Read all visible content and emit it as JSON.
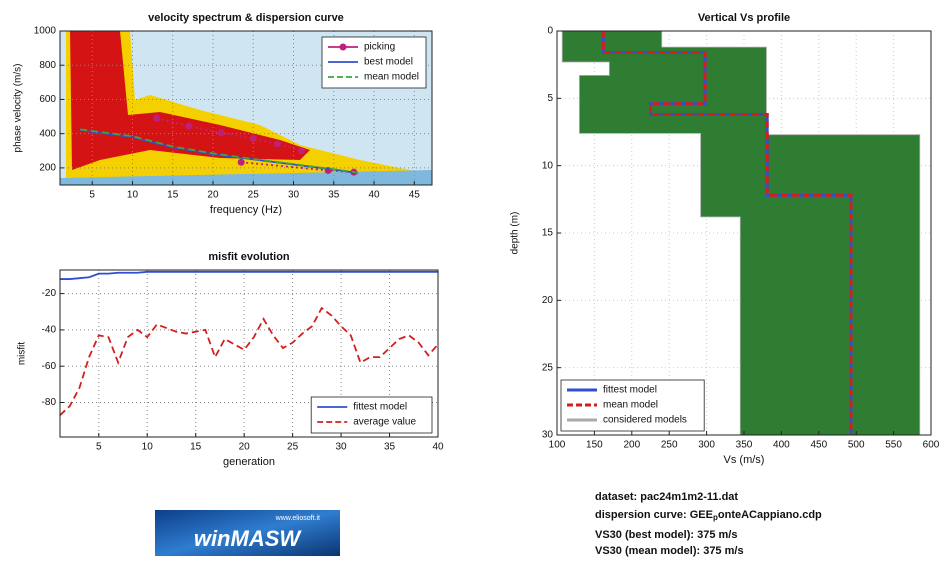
{
  "chart_data": [
    {
      "type": "line",
      "title": "velocity spectrum & dispersion curve",
      "xlabel": "frequency (Hz)",
      "ylabel": "phase velocity (m/s)",
      "xlim": [
        1,
        47.2
      ],
      "xticks": [
        5,
        10,
        15,
        20,
        25,
        30,
        35,
        40,
        45
      ],
      "ylim": [
        100,
        1000
      ],
      "yticks": [
        200,
        400,
        600,
        800,
        1000
      ],
      "grid": true,
      "legend": "upper right",
      "series": [
        {
          "name": "picking",
          "color": "#c0207a",
          "marker": "circle",
          "linestyle": "dotted",
          "x": [
            13,
            17,
            21,
            25,
            28,
            31,
            null,
            23.5,
            34.3,
            37.5
          ],
          "values": [
            490,
            445,
            405,
            370,
            340,
            300,
            null,
            233,
            185,
            175
          ]
        },
        {
          "name": "best model",
          "color": "#2f4fd0",
          "linestyle": "solid",
          "x": [
            3.5,
            10,
            15,
            20,
            25,
            30,
            35,
            38
          ],
          "values": [
            420,
            380,
            320,
            280,
            250,
            220,
            190,
            170
          ]
        },
        {
          "name": "mean model",
          "color": "#3aa83a",
          "linestyle": "dashed",
          "x": [
            3.5,
            10,
            15,
            20,
            25,
            30,
            35,
            38
          ],
          "values": [
            425,
            385,
            325,
            285,
            252,
            222,
            192,
            172
          ]
        }
      ]
    },
    {
      "type": "line",
      "title": "misfit evolution",
      "xlabel": "generation",
      "ylabel": "misfit",
      "xlim": [
        1,
        40
      ],
      "xticks": [
        5,
        10,
        15,
        20,
        25,
        30,
        35,
        40
      ],
      "ylim": [
        -99,
        -7
      ],
      "yticks": [
        -20,
        -40,
        -60,
        -80
      ],
      "grid": true,
      "legend": "lower right",
      "x": [
        1,
        2,
        3,
        4,
        5,
        6,
        7,
        8,
        9,
        10,
        11,
        12,
        13,
        14,
        15,
        16,
        17,
        18,
        19,
        20,
        21,
        22,
        23,
        24,
        25,
        26,
        27,
        28,
        29,
        30,
        31,
        32,
        33,
        34,
        35,
        36,
        37,
        38,
        39,
        40
      ],
      "series": [
        {
          "name": "fittest model",
          "color": "#2f4fd0",
          "linestyle": "solid",
          "values": [
            -12,
            -12,
            -11.5,
            -11,
            -9,
            -9,
            -8.5,
            -8.5,
            -8.5,
            -8,
            -8,
            -8,
            -8,
            -8,
            -8,
            -8,
            -8,
            -8,
            -8,
            -8,
            -8,
            -8,
            -8,
            -8,
            -8,
            -8,
            -8,
            -8,
            -8,
            -8,
            -8,
            -8,
            -8,
            -8,
            -8,
            -8,
            -8,
            -8,
            -8,
            -8
          ]
        },
        {
          "name": "average value",
          "color": "#d22020",
          "linestyle": "dashed",
          "values": [
            -87,
            -82,
            -72,
            -55,
            -43,
            -44,
            -58,
            -44,
            -40,
            -44,
            -37,
            -39,
            -41,
            -42,
            -41,
            -40,
            -55,
            -45,
            -48,
            -51,
            -44,
            -34,
            -43,
            -50,
            -47,
            -42,
            -38,
            -28,
            -32,
            -38,
            -43,
            -58,
            -55,
            -55,
            -50,
            -45,
            -43,
            -47,
            -54,
            -48
          ]
        }
      ]
    },
    {
      "type": "line",
      "title": "Vertical Vs profile",
      "xlabel": "Vs (m/s)",
      "ylabel": "depth (m)",
      "xlim": [
        100,
        600
      ],
      "xticks": [
        100,
        150,
        200,
        250,
        300,
        350,
        400,
        450,
        500,
        550,
        600
      ],
      "ylim": [
        0,
        30
      ],
      "yticks": [
        0,
        5,
        10,
        15,
        20,
        25,
        30
      ],
      "invert_y": true,
      "grid": true,
      "legend": "lower left",
      "series": [
        {
          "name": "fittest model",
          "color": "#2f4fd0",
          "linestyle": "solid",
          "x": [
            162,
            162,
            298,
            298,
            225,
            225,
            381,
            381,
            493,
            493
          ],
          "values": [
            0,
            1.6,
            1.6,
            5.4,
            5.4,
            6.2,
            6.2,
            12.2,
            12.2,
            30
          ]
        },
        {
          "name": "mean model",
          "color": "#d22020",
          "linestyle": "dashed",
          "x": [
            162,
            162,
            298,
            298,
            225,
            225,
            381,
            381,
            493,
            493
          ],
          "values": [
            0,
            1.6,
            1.6,
            5.4,
            5.4,
            6.2,
            6.2,
            12.2,
            12.2,
            30
          ]
        },
        {
          "name": "considered models",
          "color": "#aaaaaa",
          "fill": "#2f7d32",
          "linestyle": "area",
          "x": [
            107,
            240,
            240,
            380,
            380,
            585,
            585,
            345,
            345,
            292,
            292,
            130,
            130,
            170,
            170,
            107
          ],
          "values": [
            0,
            0,
            1.2,
            1.2,
            7.7,
            7.7,
            30,
            30,
            13.8,
            13.8,
            7.6,
            7.6,
            3.3,
            3.3,
            2.3,
            2.3
          ]
        }
      ]
    }
  ],
  "info": {
    "dataset": "dataset: pac24m1m2-11.dat",
    "curve_prefix": "dispersion curve: GEE",
    "curve_sub": "p",
    "curve_suffix": "onteACappiano.cdp",
    "vs30_best": "VS30 (best model): 375 m/s",
    "vs30_mean": "VS30 (mean model): 375 m/s"
  },
  "logo": {
    "name": "winMASW",
    "url": "www.eliosoft.it"
  }
}
